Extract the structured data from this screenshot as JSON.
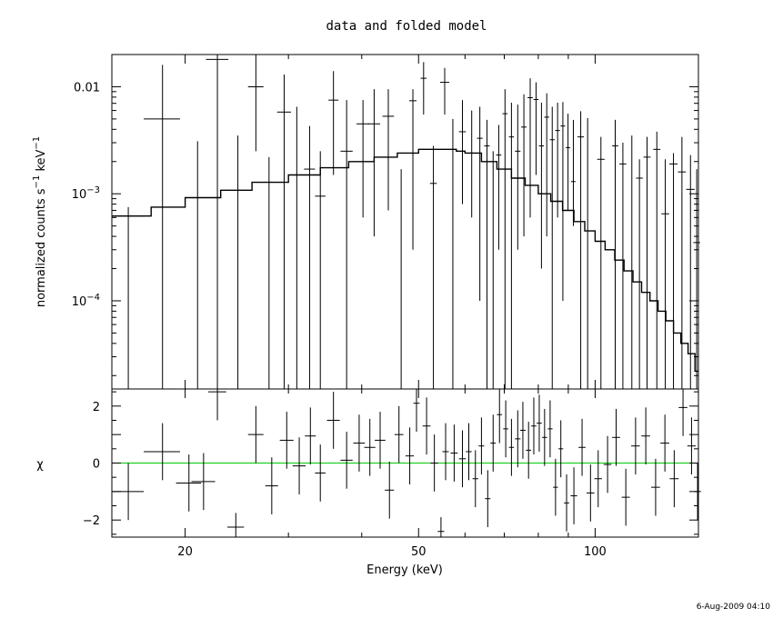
{
  "chart_data": [
    {
      "panel": "top",
      "type": "line",
      "title": "data and folded model",
      "ylabel_base": "normalized counts s",
      "ylabel_mid": " keV",
      "ylabel_exp": "−1",
      "x_scale": "log",
      "y_scale": "log",
      "xlim": [
        15,
        150
      ],
      "ylim": [
        1.5e-05,
        0.02
      ],
      "y_ticks": [
        {
          "value": 0.01,
          "label": "0.01",
          "base": "",
          "exp": ""
        },
        {
          "value": 0.001,
          "label": "",
          "base": "10",
          "exp": "−3"
        },
        {
          "value": 0.0001,
          "label": "",
          "base": "10",
          "exp": "−4"
        }
      ],
      "model": {
        "name": "folded model",
        "x": [
          15,
          17.5,
          20,
          23,
          26,
          30,
          34,
          38,
          42,
          46,
          50,
          55,
          58,
          60,
          64,
          68,
          72,
          76,
          80,
          84,
          88,
          92,
          96,
          100,
          104,
          108,
          112,
          116,
          120,
          124,
          128,
          132,
          136,
          140,
          144,
          148,
          150
        ],
        "y": [
          0.00062,
          0.00075,
          0.00092,
          0.00108,
          0.00128,
          0.0015,
          0.00175,
          0.002,
          0.0022,
          0.0024,
          0.0026,
          0.0026,
          0.0025,
          0.0024,
          0.002,
          0.0017,
          0.0014,
          0.0012,
          0.001,
          0.00085,
          0.0007,
          0.00055,
          0.00045,
          0.00036,
          0.0003,
          0.00024,
          0.00019,
          0.00015,
          0.00012,
          0.0001,
          8e-05,
          6.5e-05,
          5e-05,
          4e-05,
          3.2e-05,
          2.2e-05,
          1.8e-05
        ]
      },
      "data": {
        "name": "data",
        "points": [
          {
            "x": 16.0,
            "xerr": 1.0,
            "y": 0.00062,
            "ylo": 1.5e-05,
            "yhi": 0.00075
          },
          {
            "x": 18.3,
            "xerr": 1.3,
            "y": 0.005,
            "ylo": 1.5e-05,
            "yhi": 0.016
          },
          {
            "x": 21.0,
            "xerr": 1.2,
            "y": 0.0,
            "ylo": 1.5e-05,
            "yhi": 0.0031
          },
          {
            "x": 22.7,
            "xerr": 1.0,
            "y": 0.018,
            "ylo": 0.0,
            "yhi": 0.02
          },
          {
            "x": 24.6,
            "xerr": 0.7,
            "y": 0.0,
            "ylo": 1.5e-05,
            "yhi": 0.0035
          },
          {
            "x": 26.4,
            "xerr": 0.8,
            "y": 0.01,
            "ylo": 0.0025,
            "yhi": 0.02
          },
          {
            "x": 27.8,
            "xerr": 0.7,
            "y": 0.0,
            "ylo": 1.5e-05,
            "yhi": 0.0022
          },
          {
            "x": 29.5,
            "xerr": 0.8,
            "y": 0.0058,
            "ylo": 1.5e-05,
            "yhi": 0.013
          },
          {
            "x": 31.0,
            "xerr": 0.7,
            "y": 0.0015,
            "ylo": 1.5e-05,
            "yhi": 0.0065
          },
          {
            "x": 32.6,
            "xerr": 0.7,
            "y": 0.0017,
            "ylo": 1.5e-05,
            "yhi": 0.0043
          },
          {
            "x": 34.0,
            "xerr": 0.7,
            "y": 0.00095,
            "ylo": 1.5e-05,
            "yhi": 0.0025
          },
          {
            "x": 35.8,
            "xerr": 0.7,
            "y": 0.0075,
            "ylo": 0.0015,
            "yhi": 0.014
          },
          {
            "x": 37.7,
            "xerr": 0.9,
            "y": 0.0025,
            "ylo": 1.5e-05,
            "yhi": 0.0075
          },
          {
            "x": 40.2,
            "xerr": 1.0,
            "y": 0.0045,
            "ylo": 0.0006,
            "yhi": 0.0075
          },
          {
            "x": 42.0,
            "xerr": 1.0,
            "y": 0.0045,
            "ylo": 0.0004,
            "yhi": 0.0095
          },
          {
            "x": 44.4,
            "xerr": 1.0,
            "y": 0.0053,
            "ylo": 0.0007,
            "yhi": 0.0095
          },
          {
            "x": 46.7,
            "xerr": 0.8,
            "y": 0.0,
            "ylo": 1.5e-05,
            "yhi": 0.0017
          },
          {
            "x": 48.9,
            "xerr": 0.7,
            "y": 0.0074,
            "ylo": 0.0003,
            "yhi": 0.0095
          },
          {
            "x": 51.0,
            "xerr": 0.6,
            "y": 0.012,
            "ylo": 0.0055,
            "yhi": 0.017
          },
          {
            "x": 53.0,
            "xerr": 0.7,
            "y": 0.00125,
            "ylo": 1.5e-05,
            "yhi": 0.0028
          },
          {
            "x": 55.4,
            "xerr": 1.0,
            "y": 0.011,
            "ylo": 0.0055,
            "yhi": 0.015
          },
          {
            "x": 57.2,
            "xerr": 0.8,
            "y": 0.0,
            "ylo": 1.5e-05,
            "yhi": 0.005
          },
          {
            "x": 59.4,
            "xerr": 0.8,
            "y": 0.0038,
            "ylo": 0.0008,
            "yhi": 0.0075
          },
          {
            "x": 61.6,
            "xerr": 0.8,
            "y": 0.0024,
            "ylo": 0.0006,
            "yhi": 0.006
          },
          {
            "x": 63.6,
            "xerr": 0.7,
            "y": 0.0033,
            "ylo": 0.0001,
            "yhi": 0.0065
          },
          {
            "x": 65.4,
            "xerr": 0.7,
            "y": 0.0028,
            "ylo": 1.5e-05,
            "yhi": 0.0049
          },
          {
            "x": 67.0,
            "xerr": 0.7,
            "y": 0.0,
            "ylo": 1.5e-05,
            "yhi": 0.0025
          },
          {
            "x": 68.5,
            "xerr": 0.7,
            "y": 0.0023,
            "ylo": 0.0003,
            "yhi": 0.0044
          },
          {
            "x": 70.2,
            "xerr": 0.7,
            "y": 0.0056,
            "ylo": 1.5e-05,
            "yhi": 0.0095
          },
          {
            "x": 72.0,
            "xerr": 0.7,
            "y": 0.0034,
            "ylo": 1.5e-05,
            "yhi": 0.0071
          },
          {
            "x": 73.8,
            "xerr": 0.8,
            "y": 0.0025,
            "ylo": 0.0003,
            "yhi": 0.0068
          },
          {
            "x": 75.6,
            "xerr": 0.8,
            "y": 0.0042,
            "ylo": 0.0004,
            "yhi": 0.0085
          },
          {
            "x": 77.5,
            "xerr": 0.8,
            "y": 0.0079,
            "ylo": 0.0006,
            "yhi": 0.012
          },
          {
            "x": 79.3,
            "xerr": 0.8,
            "y": 0.0076,
            "ylo": 0.0015,
            "yhi": 0.011
          },
          {
            "x": 81.0,
            "xerr": 0.8,
            "y": 0.0028,
            "ylo": 0.0002,
            "yhi": 0.0071
          },
          {
            "x": 82.7,
            "xerr": 0.8,
            "y": 0.0052,
            "ylo": 0.0004,
            "yhi": 0.0087
          },
          {
            "x": 84.5,
            "xerr": 0.8,
            "y": 0.0032,
            "ylo": 1.5e-05,
            "yhi": 0.0065
          },
          {
            "x": 86.3,
            "xerr": 0.8,
            "y": 0.0039,
            "ylo": 0.0006,
            "yhi": 0.0071
          },
          {
            "x": 88.1,
            "xerr": 0.8,
            "y": 0.0043,
            "ylo": 0.0001,
            "yhi": 0.0072
          },
          {
            "x": 89.9,
            "xerr": 0.8,
            "y": 0.0027,
            "ylo": 0.0007,
            "yhi": 0.0056
          },
          {
            "x": 91.8,
            "xerr": 0.8,
            "y": 0.0013,
            "ylo": 0.0005,
            "yhi": 0.0049
          },
          {
            "x": 94.5,
            "xerr": 1.2,
            "y": 0.0034,
            "ylo": 1.5e-05,
            "yhi": 0.0059
          },
          {
            "x": 97.1,
            "xerr": 1.4,
            "y": 0.0,
            "ylo": 1.5e-05,
            "yhi": 0.0051
          },
          {
            "x": 102.3,
            "xerr": 1.5,
            "y": 0.0021,
            "ylo": 1.5e-05,
            "yhi": 0.0034
          },
          {
            "x": 108.2,
            "xerr": 1.3,
            "y": 0.0028,
            "ylo": 1.5e-05,
            "yhi": 0.0049
          },
          {
            "x": 111.5,
            "xerr": 1.5,
            "y": 0.0019,
            "ylo": 1.5e-05,
            "yhi": 0.003
          },
          {
            "x": 115.5,
            "xerr": 1.4,
            "y": 0.0,
            "ylo": 1.5e-05,
            "yhi": 0.0035
          },
          {
            "x": 119.0,
            "xerr": 1.6,
            "y": 0.0014,
            "ylo": 1.5e-05,
            "yhi": 0.0021
          },
          {
            "x": 122.6,
            "xerr": 1.7,
            "y": 0.0022,
            "ylo": 1.5e-05,
            "yhi": 0.0034
          },
          {
            "x": 127.4,
            "xerr": 1.8,
            "y": 0.0026,
            "ylo": 1.5e-05,
            "yhi": 0.0038
          },
          {
            "x": 131.7,
            "xerr": 2.0,
            "y": 0.00065,
            "ylo": 1.5e-05,
            "yhi": 0.0021
          },
          {
            "x": 136.0,
            "xerr": 2.2,
            "y": 0.0019,
            "ylo": 1.5e-05,
            "yhi": 0.0024
          },
          {
            "x": 140.6,
            "xerr": 2.2,
            "y": 0.0016,
            "ylo": 1.5e-05,
            "yhi": 0.0034
          },
          {
            "x": 145.4,
            "xerr": 2.4,
            "y": 0.0011,
            "ylo": 1.5e-05,
            "yhi": 0.0023
          },
          {
            "x": 149.0,
            "xerr": 2.0,
            "y": 0.00035,
            "ylo": 1.5e-05,
            "yhi": 0.0017
          }
        ]
      },
      "line_color": "#000000"
    },
    {
      "panel": "bottom",
      "type": "scatter",
      "xlabel": "Energy (keV)",
      "ylabel": "χ",
      "x_scale": "log",
      "xlim": [
        15,
        150
      ],
      "ylim": [
        -2.6,
        2.6
      ],
      "x_ticks": [
        {
          "value": 20,
          "label": "20"
        },
        {
          "value": 50,
          "label": "50"
        },
        {
          "value": 100,
          "label": "100"
        }
      ],
      "y_ticks": [
        {
          "value": 2,
          "label": "2"
        },
        {
          "value": 0,
          "label": "0"
        },
        {
          "value": -2,
          "label": "−2"
        }
      ],
      "zero_line_color": "#00cc00",
      "points": [
        {
          "x": 16.0,
          "xerr": 1.0,
          "y": -1.0,
          "yerr": 1.0
        },
        {
          "x": 18.3,
          "xerr": 1.3,
          "y": 0.4,
          "yerr": 1.0
        },
        {
          "x": 20.3,
          "xerr": 1.0,
          "y": -0.7,
          "yerr": 1.0
        },
        {
          "x": 21.5,
          "xerr": 1.0,
          "y": -0.65,
          "yerr": 1.0
        },
        {
          "x": 22.7,
          "xerr": 0.8,
          "y": 2.5,
          "yerr": 1.0
        },
        {
          "x": 24.4,
          "xerr": 0.8,
          "y": -2.25,
          "yerr": 0.5
        },
        {
          "x": 26.4,
          "xerr": 0.8,
          "y": 1.0,
          "yerr": 1.0
        },
        {
          "x": 28.1,
          "xerr": 0.7,
          "y": -0.8,
          "yerr": 1.0
        },
        {
          "x": 29.8,
          "xerr": 0.8,
          "y": 0.8,
          "yerr": 1.0
        },
        {
          "x": 31.3,
          "xerr": 0.8,
          "y": -0.1,
          "yerr": 1.0
        },
        {
          "x": 32.7,
          "xerr": 0.7,
          "y": 0.95,
          "yerr": 1.0
        },
        {
          "x": 34.0,
          "xerr": 0.7,
          "y": -0.35,
          "yerr": 1.0
        },
        {
          "x": 35.8,
          "xerr": 0.9,
          "y": 1.5,
          "yerr": 1.0
        },
        {
          "x": 37.7,
          "xerr": 0.9,
          "y": 0.1,
          "yerr": 1.0
        },
        {
          "x": 39.6,
          "xerr": 0.9,
          "y": 0.7,
          "yerr": 1.0
        },
        {
          "x": 41.3,
          "xerr": 0.9,
          "y": 0.55,
          "yerr": 1.0
        },
        {
          "x": 43.0,
          "xerr": 0.9,
          "y": 0.8,
          "yerr": 1.0
        },
        {
          "x": 44.6,
          "xerr": 0.8,
          "y": -0.95,
          "yerr": 1.0
        },
        {
          "x": 46.3,
          "xerr": 0.8,
          "y": 1.0,
          "yerr": 1.0
        },
        {
          "x": 48.3,
          "xerr": 0.8,
          "y": 0.25,
          "yerr": 1.0
        },
        {
          "x": 49.6,
          "xerr": 0.6,
          "y": 2.1,
          "yerr": 1.0
        },
        {
          "x": 51.6,
          "xerr": 0.8,
          "y": 1.3,
          "yerr": 1.0
        },
        {
          "x": 53.2,
          "xerr": 0.8,
          "y": 0.0,
          "yerr": 1.0
        },
        {
          "x": 54.6,
          "xerr": 0.7,
          "y": -2.4,
          "yerr": 0.5
        },
        {
          "x": 55.6,
          "xerr": 0.7,
          "y": 0.4,
          "yerr": 1.0
        },
        {
          "x": 57.5,
          "xerr": 0.8,
          "y": 0.35,
          "yerr": 1.0
        },
        {
          "x": 59.4,
          "xerr": 0.8,
          "y": 0.15,
          "yerr": 1.0
        },
        {
          "x": 60.9,
          "xerr": 0.7,
          "y": 0.4,
          "yerr": 1.0
        },
        {
          "x": 62.5,
          "xerr": 0.7,
          "y": -0.55,
          "yerr": 1.0
        },
        {
          "x": 64.0,
          "xerr": 0.7,
          "y": 0.6,
          "yerr": 1.0
        },
        {
          "x": 65.6,
          "xerr": 0.7,
          "y": -1.25,
          "yerr": 1.0
        },
        {
          "x": 67.0,
          "xerr": 0.7,
          "y": 0.7,
          "yerr": 1.0
        },
        {
          "x": 68.7,
          "xerr": 0.7,
          "y": 1.7,
          "yerr": 1.0
        },
        {
          "x": 70.4,
          "xerr": 0.7,
          "y": 1.2,
          "yerr": 1.0
        },
        {
          "x": 72.0,
          "xerr": 0.7,
          "y": 0.55,
          "yerr": 1.0
        },
        {
          "x": 73.8,
          "xerr": 0.8,
          "y": 0.85,
          "yerr": 1.0
        },
        {
          "x": 75.3,
          "xerr": 0.8,
          "y": 1.15,
          "yerr": 1.0
        },
        {
          "x": 77.0,
          "xerr": 0.8,
          "y": 0.45,
          "yerr": 1.0
        },
        {
          "x": 78.6,
          "xerr": 0.8,
          "y": 1.3,
          "yerr": 1.0
        },
        {
          "x": 80.3,
          "xerr": 0.8,
          "y": 1.4,
          "yerr": 1.0
        },
        {
          "x": 82.0,
          "xerr": 0.8,
          "y": 0.9,
          "yerr": 1.0
        },
        {
          "x": 83.8,
          "xerr": 0.8,
          "y": 1.2,
          "yerr": 1.0
        },
        {
          "x": 85.6,
          "xerr": 0.8,
          "y": -0.85,
          "yerr": 1.0
        },
        {
          "x": 87.4,
          "xerr": 0.8,
          "y": 0.5,
          "yerr": 1.0
        },
        {
          "x": 89.4,
          "xerr": 0.9,
          "y": -1.4,
          "yerr": 1.0
        },
        {
          "x": 92.0,
          "xerr": 1.2,
          "y": -1.15,
          "yerr": 1.0
        },
        {
          "x": 95.0,
          "xerr": 1.3,
          "y": 0.55,
          "yerr": 1.0
        },
        {
          "x": 98.2,
          "xerr": 1.5,
          "y": -1.05,
          "yerr": 1.0
        },
        {
          "x": 101.2,
          "xerr": 1.5,
          "y": -0.55,
          "yerr": 1.0
        },
        {
          "x": 105.0,
          "xerr": 1.6,
          "y": -0.05,
          "yerr": 1.0
        },
        {
          "x": 108.6,
          "xerr": 1.7,
          "y": 0.9,
          "yerr": 1.0
        },
        {
          "x": 112.8,
          "xerr": 1.8,
          "y": -1.2,
          "yerr": 1.0
        },
        {
          "x": 117.2,
          "xerr": 2.0,
          "y": 0.6,
          "yerr": 1.0
        },
        {
          "x": 122.0,
          "xerr": 2.1,
          "y": 0.95,
          "yerr": 1.0
        },
        {
          "x": 126.8,
          "xerr": 2.2,
          "y": -0.85,
          "yerr": 1.0
        },
        {
          "x": 131.5,
          "xerr": 2.3,
          "y": 0.7,
          "yerr": 1.0
        },
        {
          "x": 136.4,
          "xerr": 2.4,
          "y": -0.55,
          "yerr": 1.0
        },
        {
          "x": 141.2,
          "xerr": 2.4,
          "y": 1.95,
          "yerr": 1.0
        },
        {
          "x": 146.0,
          "xerr": 2.4,
          "y": 0.6,
          "yerr": 1.0
        },
        {
          "x": 149.5,
          "xerr": 2.0,
          "y": -1.0,
          "yerr": 1.0
        }
      ]
    }
  ],
  "footer": {
    "timestamp": "6-Aug-2009 04:10"
  }
}
